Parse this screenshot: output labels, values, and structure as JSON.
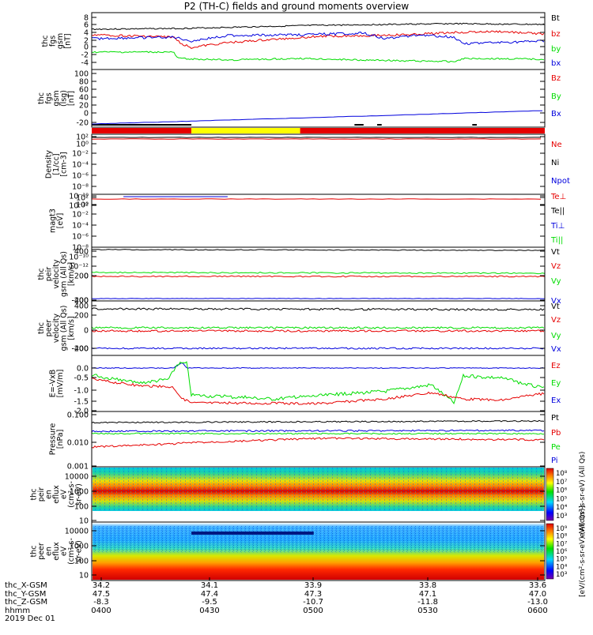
{
  "title": "P2 (TH-C) fields and ground moments overview",
  "colors": {
    "black": "#000000",
    "red": "#e60000",
    "green": "#00dd00",
    "blue": "#0000dd",
    "yellow": "#ffff00"
  },
  "panels": [
    {
      "ylabel": [
        "thc",
        "fgs",
        "gsm",
        "[nT]"
      ],
      "ticks": [
        "8",
        "6",
        "4",
        "2",
        "0",
        "-2",
        "-4"
      ],
      "legend": [
        {
          "text": "Bt",
          "color": "#000000"
        },
        {
          "text": "bz",
          "color": "#e60000"
        },
        {
          "text": "by",
          "color": "#00dd00"
        },
        {
          "text": "bx",
          "color": "#0000dd"
        }
      ]
    },
    {
      "ylabel": [
        "thc",
        "fgs",
        "gsm",
        "(lsg)",
        "[nT]"
      ],
      "ticks": [
        "100",
        "80",
        "60",
        "40",
        "20",
        "0",
        "-20"
      ],
      "legend": [
        {
          "text": "Bz",
          "color": "#e60000"
        },
        {
          "text": "By",
          "color": "#00dd00"
        },
        {
          "text": "Bx",
          "color": "#0000dd"
        }
      ]
    },
    {
      "ylabel": [
        "Density",
        "[1/cc]",
        "[cm-3]"
      ],
      "ticks": [
        "10²",
        "10⁰",
        "10⁻²",
        "10⁻⁴",
        "10⁻⁶",
        "10⁻⁸",
        "10⁻¹⁰",
        "10⁻¹²"
      ],
      "legend": [
        {
          "text": "Ne",
          "color": "#e60000"
        },
        {
          "text": "Ni",
          "color": "#000000"
        },
        {
          "text": "Npot",
          "color": "#0000dd"
        }
      ]
    },
    {
      "ylabel": [
        "magt3",
        "[eV]"
      ],
      "ticks": [
        "10²",
        "10⁰",
        "10⁻²",
        "10⁻⁴",
        "10⁻⁶",
        "10⁻⁸",
        "10⁻¹⁰",
        "10⁻¹²"
      ],
      "legend": [
        {
          "text": "Te⊥",
          "color": "#e60000"
        },
        {
          "text": "Te||",
          "color": "#000000"
        },
        {
          "text": "Ti⊥",
          "color": "#0000dd"
        },
        {
          "text": "Ti||",
          "color": "#00dd00"
        }
      ]
    },
    {
      "ylabel": [
        "thc",
        "peir",
        "velocity",
        "gsm (All Qs)",
        "[km/s]"
      ],
      "ticks": [
        "400",
        "200",
        "0",
        "-200",
        "-400"
      ],
      "legend": [
        {
          "text": "Vt",
          "color": "#000000"
        },
        {
          "text": "Vz",
          "color": "#e60000"
        },
        {
          "text": "Vy",
          "color": "#00dd00"
        },
        {
          "text": "Vx",
          "color": "#0000dd"
        }
      ]
    },
    {
      "ylabel": [
        "thc",
        "peer",
        "velocity",
        "gsm (All Qs)",
        "[km/s]"
      ],
      "ticks": [
        "400",
        "200",
        "0",
        "-200",
        "-400"
      ],
      "legend": [
        {
          "text": "Vt",
          "color": "#000000"
        },
        {
          "text": "Vz",
          "color": "#e60000"
        },
        {
          "text": "Vy",
          "color": "#00dd00"
        },
        {
          "text": "Vx",
          "color": "#0000dd"
        }
      ]
    },
    {
      "ylabel": [
        "E=-VxB",
        "[mV/m]"
      ],
      "ticks": [
        "0.0",
        "-0.5",
        "-1.0",
        "-1.5",
        "-2.0"
      ],
      "legend": [
        {
          "text": "Ez",
          "color": "#e60000"
        },
        {
          "text": "Ey",
          "color": "#00dd00"
        },
        {
          "text": "Ex",
          "color": "#0000dd"
        }
      ]
    },
    {
      "ylabel": [
        "Pressure",
        "[nPa]"
      ],
      "ticks": [
        "0.100",
        "0.010",
        "0.001"
      ],
      "legend": [
        {
          "text": "Pt",
          "color": "#000000"
        },
        {
          "text": "Pb",
          "color": "#e60000"
        },
        {
          "text": "Pe",
          "color": "#00dd00"
        },
        {
          "text": "Pi",
          "color": "#0000dd"
        }
      ]
    },
    {
      "ylabel": [
        "thc",
        "peir",
        "en",
        "eflux",
        "eV",
        "(cm²-s-",
        "sr-eV)"
      ],
      "ticks": [
        "10000",
        "1000",
        "100",
        "10"
      ],
      "legend": []
    },
    {
      "ylabel": [
        "thc",
        "peer",
        "en",
        "eflux",
        "eV",
        "(cm²-s-",
        "sr-eV)"
      ],
      "ticks": [
        "10000",
        "1000",
        "100",
        "10"
      ],
      "legend": []
    }
  ],
  "colorbar_top": {
    "ticks": [
      "10⁸",
      "10⁷",
      "10⁶",
      "10⁵",
      "10⁴",
      "10³"
    ],
    "label": "eV/(cm²-s-sr-eV) (All Qs)"
  },
  "colorbar_bottom": {
    "ticks": [
      "10⁹",
      "10⁸",
      "10⁷",
      "10⁶",
      "10⁵",
      "10⁴",
      "10³"
    ],
    "label": "[eV/(cm²-s-sr-eV) (All Qs)]"
  },
  "xaxis": {
    "rows": [
      {
        "label": "thc_X-GSM",
        "values": [
          "34.2",
          "34.1",
          "33.9",
          "33.8",
          "33.6"
        ]
      },
      {
        "label": "thc_Y-GSM",
        "values": [
          "47.5",
          "47.4",
          "47.3",
          "47.1",
          "47.0"
        ]
      },
      {
        "label": "thc_Z-GSM",
        "values": [
          "-8.3",
          "-9.5",
          "-10.7",
          "-11.8",
          "-13.0"
        ]
      },
      {
        "label": "hhmm",
        "values": [
          "0400",
          "0430",
          "0500",
          "0530",
          "0600"
        ]
      }
    ],
    "date": "2019 Dec 01"
  }
}
